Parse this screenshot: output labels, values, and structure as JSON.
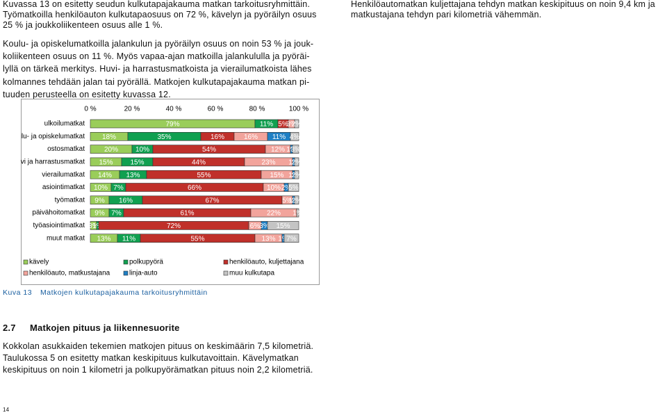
{
  "document": {
    "intro_left": [
      "Kuvassa 13 on esitetty seudun kulkutapajakauma matkan tarkoitusryhmittäin.",
      "Työmatkoilla henkilöauton kulkutapaosuus on 72 %, kävelyn ja pyöräilyn osuus",
      "25 % ja joukkoliikenteen osuus alle 1 %."
    ],
    "intro_right": [
      "Henkilöautomatkan kuljettajana tehdyn matkan keskipituus on noin 9,4 km ja",
      "matkustajana tehdyn pari kilometriä vähemmän."
    ],
    "paragraph": [
      "Koulu- ja opiskelumatkoilla jalankulun ja pyöräilyn osuus on noin 53 % ja jouk-",
      "koliikenteen osuus on 11 %. Myös vapaa-ajan matkoilla jalankululla ja pyöräi-",
      "lyllä on tärkeä merkitys. Huvi- ja harrastusmatkoista ja vierailumatkoista lähes",
      "kolmannes tehdään jalan tai pyörällä. Matkojen kulkutapajakauma matkan pi-",
      "tuuden perusteella on esitetty kuvassa 12."
    ],
    "caption": {
      "number": "Kuva 13",
      "text": "Matkojen kulkutapajakauma tarkoitusryhmittäin"
    },
    "heading": {
      "number": "2.7",
      "text": "Matkojen pituus ja liikennesuorite"
    },
    "paragraph2": [
      "Kokkolan asukkaiden tekemien matkojen pituus on keskimäärin 7,5 kilometriä.",
      "Taulukossa 5 on esitetty matkan keskipituus kulkutavoittain. Kävelymatkan",
      "keskipituus on noin 1 kilometri ja polkupyörämatkan pituus noin 2,2 kilometriä."
    ],
    "page_number": "14"
  },
  "chart_data": {
    "type": "stacked-barh",
    "categories": [
      "ulkoilumatkat",
      "koulu- ja opiskelumatkat",
      "ostosmatkat",
      "huvi ja harrastusmatkat",
      "vierailumatkat",
      "asiointimatkat",
      "työmatkat",
      "päivähoitomatkat",
      "työasiointimatkat",
      "muut matkat"
    ],
    "xlim": [
      0,
      100
    ],
    "xticks": [
      {
        "value": 0,
        "label": "0 %"
      },
      {
        "value": 20,
        "label": "20 %"
      },
      {
        "value": 40,
        "label": "40 %"
      },
      {
        "value": 60,
        "label": "60 %"
      },
      {
        "value": 80,
        "label": "80 %"
      },
      {
        "value": 100,
        "label": "100 %"
      }
    ],
    "series": [
      {
        "name": "kävely",
        "color": "#9acd5a",
        "values": [
          79,
          18,
          20,
          15,
          14,
          10,
          9,
          9,
          3,
          13
        ],
        "value_labels": [
          "79%",
          "18%",
          "20%",
          "15%",
          "14%",
          "10%",
          "9%",
          "9%",
          "3%",
          "13%"
        ]
      },
      {
        "name": "polkupyörä",
        "color": "#10a050",
        "values": [
          11,
          35,
          10,
          15,
          13,
          7,
          16,
          7,
          1,
          11
        ],
        "value_labels": [
          "11%",
          "35%",
          "10%",
          "15%",
          "13%",
          "7%",
          "16%",
          "7%",
          "1%",
          "11%"
        ]
      },
      {
        "name": "henkilöauto, kuljettajana",
        "color": "#c0302a",
        "values": [
          5,
          16,
          54,
          44,
          55,
          66,
          67,
          61,
          72,
          55
        ],
        "value_labels": [
          "5%",
          "16%",
          "54%",
          "44%",
          "55%",
          "66%",
          "67%",
          "61%",
          "72%",
          "55%"
        ]
      },
      {
        "name": "henkilöauto, matkustajana",
        "color": "#f2a49c",
        "values": [
          3,
          16,
          12,
          23,
          15,
          10,
          5,
          22,
          6,
          13
        ],
        "value_labels": [
          "3%",
          "16%",
          "12%",
          "23%",
          "15%",
          "10%",
          "5%",
          "22%",
          "6%",
          "13%"
        ]
      },
      {
        "name": "linja-auto",
        "color": "#1f7fc4",
        "values": [
          null,
          11,
          1,
          1,
          1,
          2,
          1,
          null,
          3,
          1
        ],
        "value_labels": [
          null,
          "11%",
          "1%",
          "1%",
          "1%",
          "2%",
          "1%",
          null,
          "3%",
          "1%"
        ]
      },
      {
        "name": "muu kulkutapa",
        "color": "#c4c4c4",
        "values": [
          2,
          4,
          3,
          2,
          2,
          5,
          2,
          1,
          15,
          7
        ],
        "value_labels": [
          "2%",
          "4%",
          "3%",
          "2%",
          "2%",
          "5%",
          "2%",
          "1%",
          "15%",
          "7%"
        ]
      }
    ]
  }
}
